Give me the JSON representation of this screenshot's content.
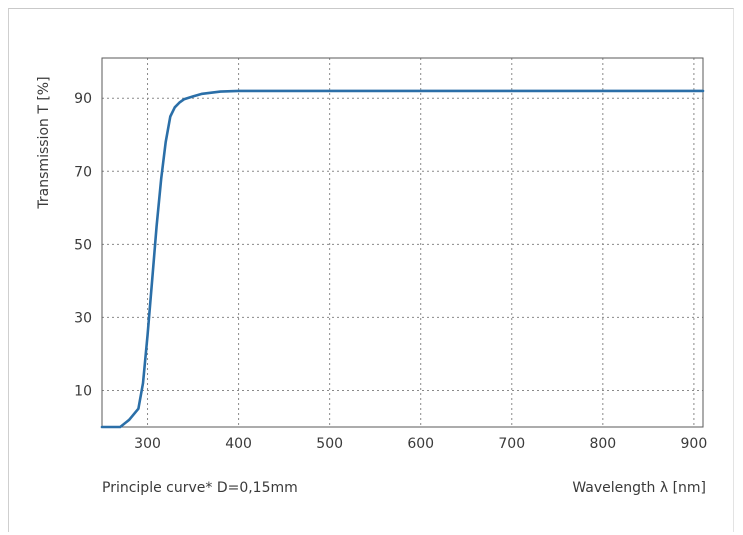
{
  "chart_data": {
    "type": "line",
    "ylabel": "Transmission T [%]",
    "xlabel": "Wavelength λ [nm]",
    "note": "Principle curve* D=0,15mm",
    "xlim": [
      250,
      910
    ],
    "ylim": [
      0,
      101
    ],
    "x_ticks": [
      300,
      400,
      500,
      600,
      700,
      800,
      900
    ],
    "y_ticks": [
      10,
      30,
      50,
      70,
      90
    ],
    "grid": true,
    "line_color": "#2b6fa8",
    "series": [
      {
        "x": [
          250,
          260,
          270,
          280,
          290,
          295,
          300,
          305,
          310,
          315,
          320,
          325,
          330,
          335,
          340,
          350,
          360,
          380,
          400,
          450,
          500,
          600,
          700,
          800,
          910
        ],
        "values": [
          0,
          0,
          0,
          2,
          5,
          12,
          25,
          40,
          55,
          68,
          78,
          85,
          87.5,
          88.8,
          89.7,
          90.5,
          91.2,
          91.8,
          92.0,
          92.0,
          92.0,
          92.0,
          92.0,
          92.0,
          92.0
        ]
      }
    ]
  }
}
